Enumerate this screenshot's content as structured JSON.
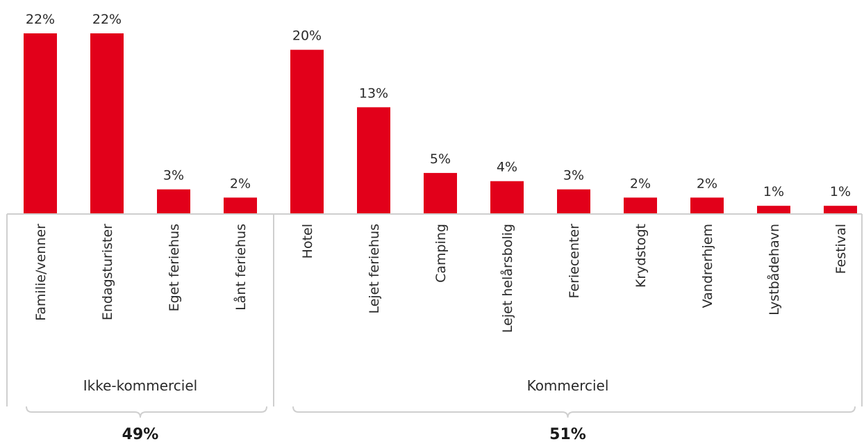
{
  "chart_data": {
    "type": "bar",
    "title": "",
    "xlabel": "",
    "ylabel": "",
    "ylim": [
      0,
      22
    ],
    "bar_color": "#e2001a",
    "categories": [
      "Familie/venner",
      "Endagsturister",
      "Eget feriehus",
      "Lånt feriehus",
      "Hotel",
      "Lejet feriehus",
      "Camping",
      "Lejet helårsbolig",
      "Feriecenter",
      "Krydstogt",
      "Vandrerhjem",
      "Lystbådehavn",
      "Festival"
    ],
    "values": [
      22,
      22,
      3,
      2,
      20,
      13,
      5,
      4,
      3,
      2,
      2,
      1,
      1
    ],
    "value_labels": [
      "22%",
      "22%",
      "3%",
      "2%",
      "20%",
      "13%",
      "5%",
      "4%",
      "3%",
      "2%",
      "2%",
      "1%",
      "1%"
    ],
    "groups": [
      {
        "label": "Ikke-kommerciel",
        "total": "49%",
        "start": 0,
        "end": 3
      },
      {
        "label": "Kommerciel",
        "total": "51%",
        "start": 4,
        "end": 12
      }
    ]
  }
}
